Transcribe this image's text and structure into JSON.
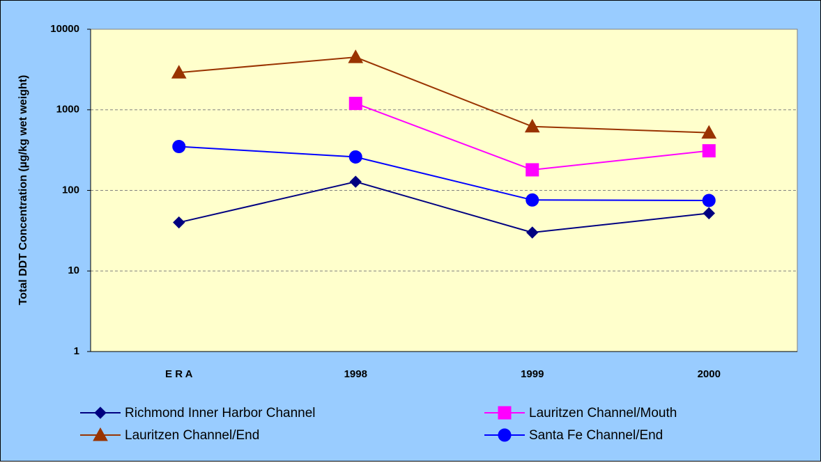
{
  "chart_data": {
    "type": "line",
    "y_label": "Total DDT Concentration (µg/kg wet weight)",
    "categories": [
      "E R A",
      "1998",
      "1999",
      "2000"
    ],
    "log_scale_y": true,
    "ylim": [
      1,
      10000
    ],
    "yticks": [
      1,
      10,
      100,
      1000,
      10000
    ],
    "grid": true,
    "legend": "bottom",
    "series": [
      {
        "name": "Richmond Inner Harbor Channel",
        "color": "#000080",
        "marker": "diamond",
        "values": [
          40,
          128,
          30,
          52
        ]
      },
      {
        "name": "Lauritzen Channel/Mouth",
        "color": "#FF00FF",
        "marker": "square",
        "values": [
          null,
          1200,
          180,
          310
        ]
      },
      {
        "name": "Lauritzen Channel/End",
        "color": "#993300",
        "marker": "triangle",
        "values": [
          2900,
          4500,
          620,
          520
        ]
      },
      {
        "name": "Santa Fe Channel/End",
        "color": "#0000FF",
        "marker": "circle",
        "values": [
          350,
          260,
          76,
          75
        ]
      }
    ]
  }
}
